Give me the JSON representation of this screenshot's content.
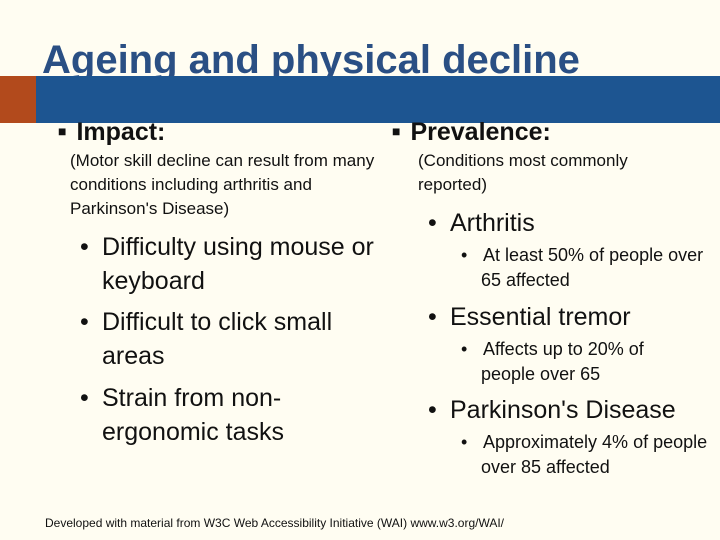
{
  "slide": {
    "title": "Ageing and physical decline",
    "left": {
      "heading": "Impact:",
      "note": "(Motor skill decline can result from many conditions including arthritis and Parkinson's Disease)",
      "bullets": [
        "Difficulty using mouse or keyboard",
        "Difficult to click small areas",
        "Strain from non-ergonomic tasks"
      ]
    },
    "right": {
      "heading": "Prevalence:",
      "note": "(Conditions most commonly reported)",
      "items": [
        {
          "label": "Arthritis",
          "detail": "At least 50% of people over 65 affected"
        },
        {
          "label": "Essential tremor",
          "detail": "Affects up to 20% of people over 65"
        },
        {
          "label": "Parkinson's Disease",
          "detail": "Approximately 4% of people over 85 affected"
        }
      ]
    },
    "footer": "Developed with material from W3C Web Accessibility Initiative (WAI) www.w3.org/WAI/"
  },
  "colors": {
    "title": "#2a4f84",
    "band": "#1d5591",
    "accent": "#b24a1c",
    "background": "#fffdf2"
  },
  "icons": {
    "heading_bullet": "square-bullet-icon",
    "item_bullet": "dot-bullet-icon"
  }
}
